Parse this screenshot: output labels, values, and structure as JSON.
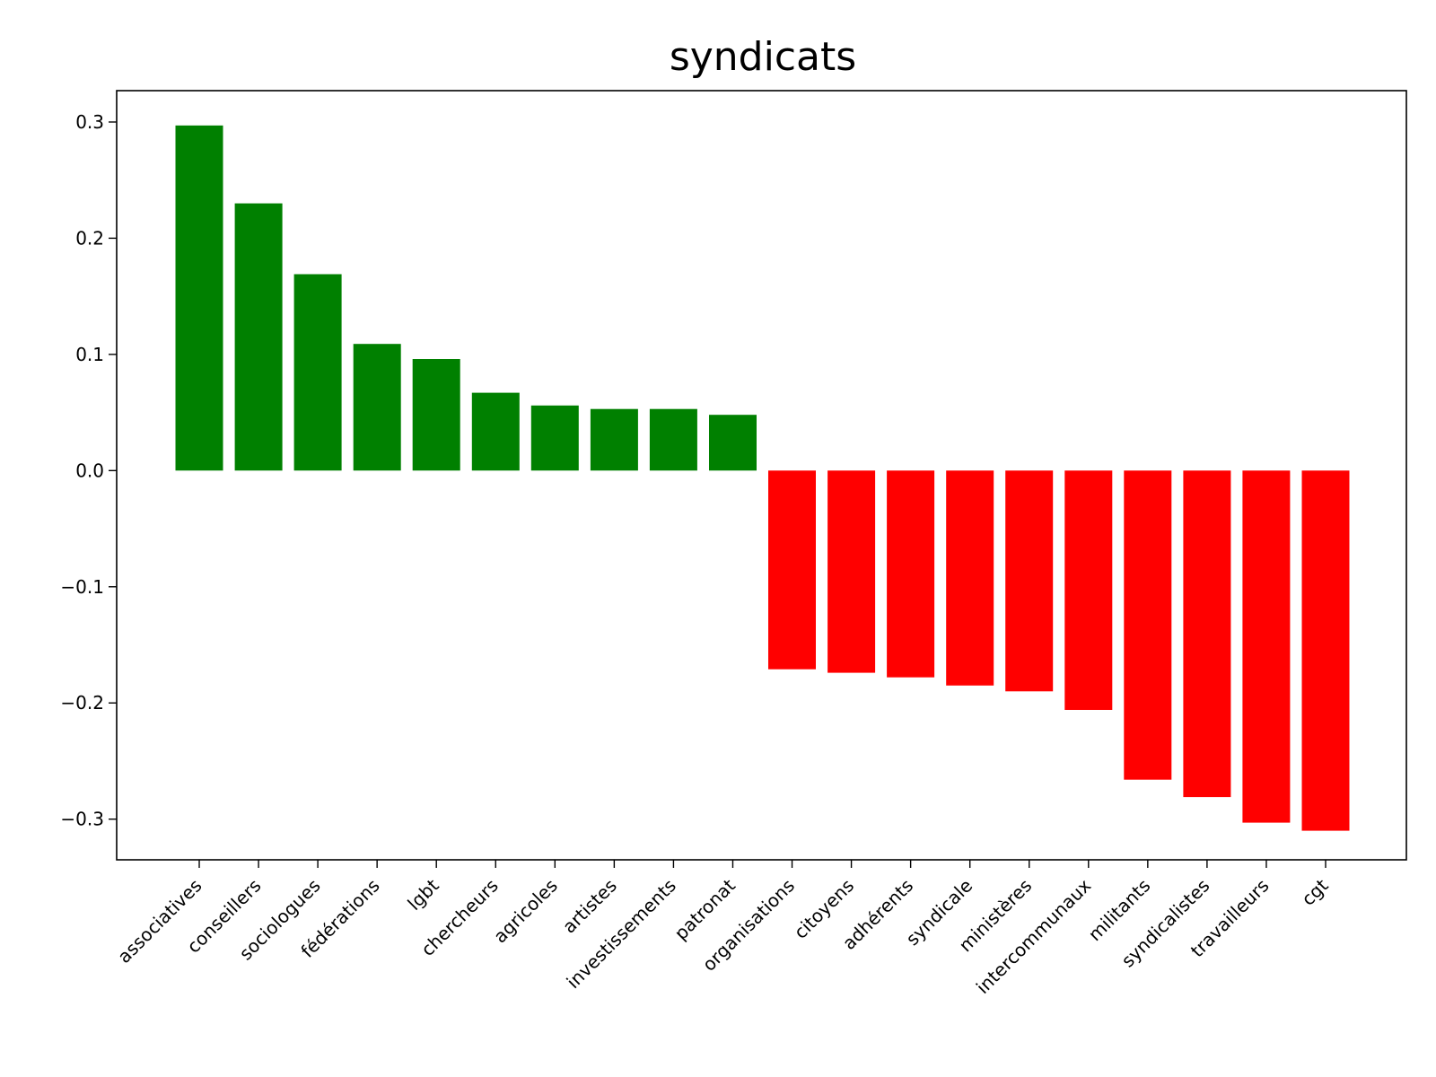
{
  "chart_data": {
    "type": "bar",
    "title": "syndicats",
    "xlabel": "",
    "ylabel": "",
    "ylim": [
      -0.335,
      0.327
    ],
    "yticks": [
      0.3,
      0.2,
      0.1,
      0.0,
      -0.1,
      -0.2,
      -0.3
    ],
    "ytick_labels": [
      "0.3",
      "0.2",
      "0.1",
      "0.0",
      "−0.1",
      "−0.2",
      "−0.3"
    ],
    "grid": false,
    "categories": [
      "associatives",
      "conseillers",
      "sociologues",
      "fédérations",
      "lgbt",
      "chercheurs",
      "agricoles",
      "artistes",
      "investissements",
      "patronat",
      "organisations",
      "citoyens",
      "adhérents",
      "syndicale",
      "ministères",
      "intercommunaux",
      "militants",
      "syndicalistes",
      "travailleurs",
      "cgt"
    ],
    "values": [
      0.297,
      0.23,
      0.169,
      0.109,
      0.096,
      0.067,
      0.056,
      0.053,
      0.053,
      0.048,
      -0.171,
      -0.174,
      -0.178,
      -0.185,
      -0.19,
      -0.206,
      -0.266,
      -0.281,
      -0.303,
      -0.31
    ],
    "colors": {
      "positive": "#008000",
      "negative": "#ff0000"
    }
  }
}
